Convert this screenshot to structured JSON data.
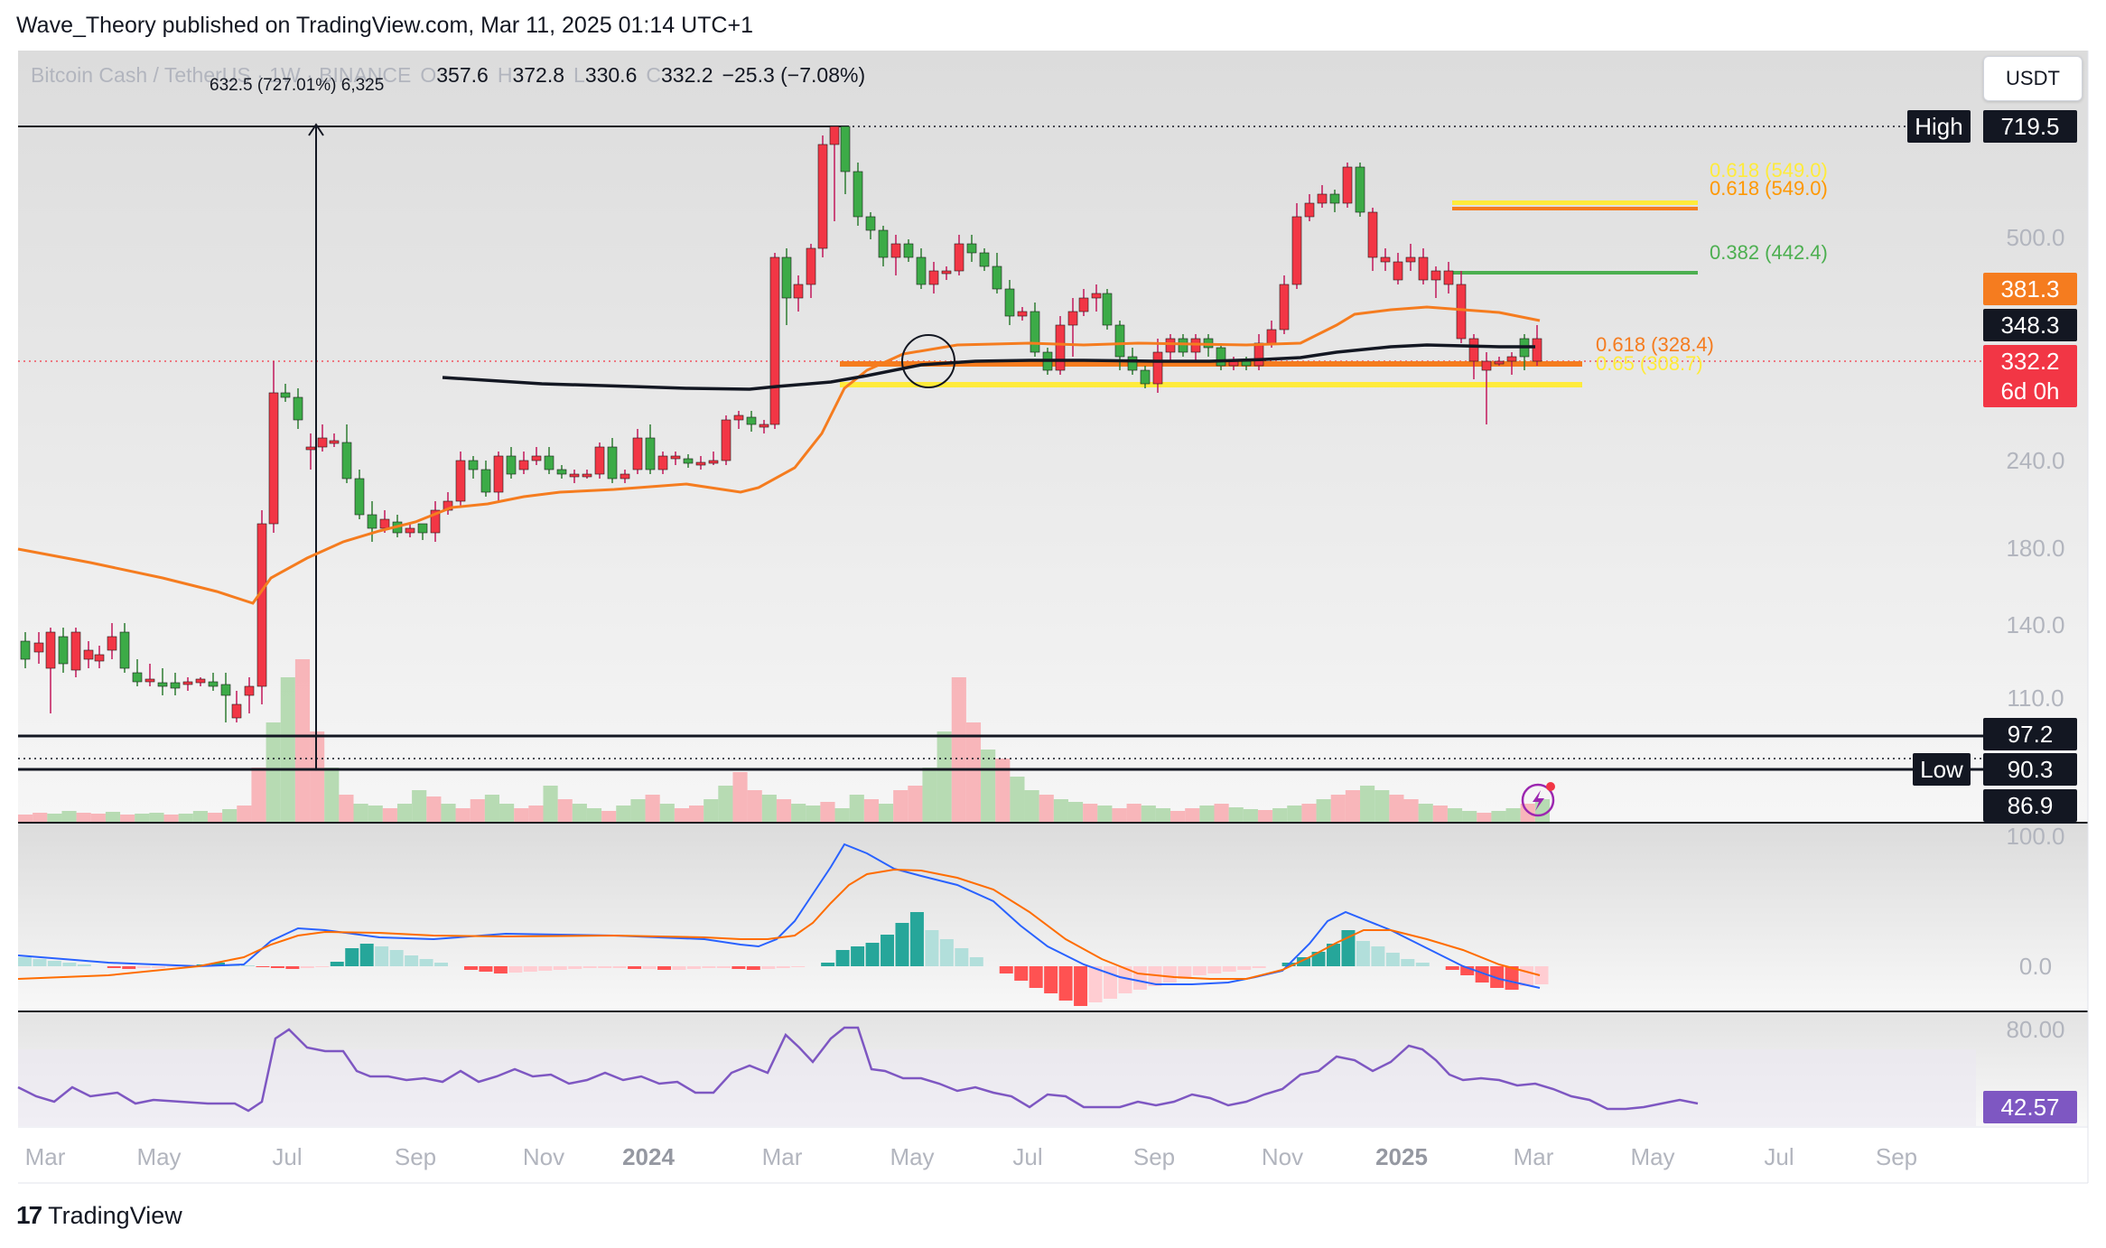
{
  "header": {
    "published": "Wave_Theory published on TradingView.com, Mar 11, 2025 01:14 UTC+1",
    "symbol": "Bitcoin Cash / TetherUS · 1W · BINANCE",
    "ohlc": [
      {
        "label": "O",
        "value": "357.6"
      },
      {
        "label": "H",
        "value": "372.8"
      },
      {
        "label": "L",
        "value": "330.6"
      },
      {
        "label": "C",
        "value": "332.2"
      }
    ],
    "change": "−25.3 (−7.08%)",
    "measure": "632.5 (727.01%) 6,325",
    "currency_button": "USDT"
  },
  "footer": {
    "logo": "17",
    "brand": "TradingView"
  },
  "colors": {
    "bull": "#26a69a",
    "bull_candle": "#3cab47",
    "bear": "#f23645",
    "ema_orange": "#f57c1f",
    "sma_black": "#131722",
    "fib_yellow": "#ffeb3b",
    "fib_green": "#4caf50",
    "macd_line": "#2962ff",
    "signal_line": "#ff6d00",
    "rsi": "#7e57c2"
  },
  "chart_data": {
    "type": "candlestick",
    "x_ticks": [
      "Mar",
      "May",
      "Jul",
      "Sep",
      "Nov",
      "2024",
      "Mar",
      "May",
      "Jul",
      "Sep",
      "Nov",
      "2025",
      "Mar",
      "May",
      "Jul",
      "Sep"
    ],
    "y_scale": "log",
    "y_ticks": [
      "500.0",
      "240.0",
      "180.0",
      "140.0",
      "110.0"
    ],
    "price_labels": [
      {
        "text": "High",
        "value": "719.5"
      },
      {
        "text": "",
        "value": "381.3"
      },
      {
        "text": "",
        "value": "348.3"
      },
      {
        "text": "",
        "value": "332.2"
      },
      {
        "text": "",
        "value": "6d 0h"
      },
      {
        "text": "",
        "value": "97.2"
      },
      {
        "text": "Low",
        "value": "90.3"
      },
      {
        "text": "",
        "value": "86.9"
      }
    ],
    "fib_levels": [
      {
        "label": "0.618 (549.0)",
        "value": 549.0
      },
      {
        "label": "0.382 (442.4)",
        "value": 442.4
      },
      {
        "label": "0.618 (328.4)",
        "value": 328.4
      },
      {
        "label": "0.65 (308.7)",
        "value": 308.7
      }
    ],
    "open": 357.6,
    "high": 372.8,
    "low": 330.6,
    "close": 332.2,
    "macd": {
      "y_ticks": [
        "100.0",
        "0.0"
      ]
    },
    "rsi": {
      "y_ticks": [
        "80.00"
      ],
      "value": "42.57"
    }
  }
}
